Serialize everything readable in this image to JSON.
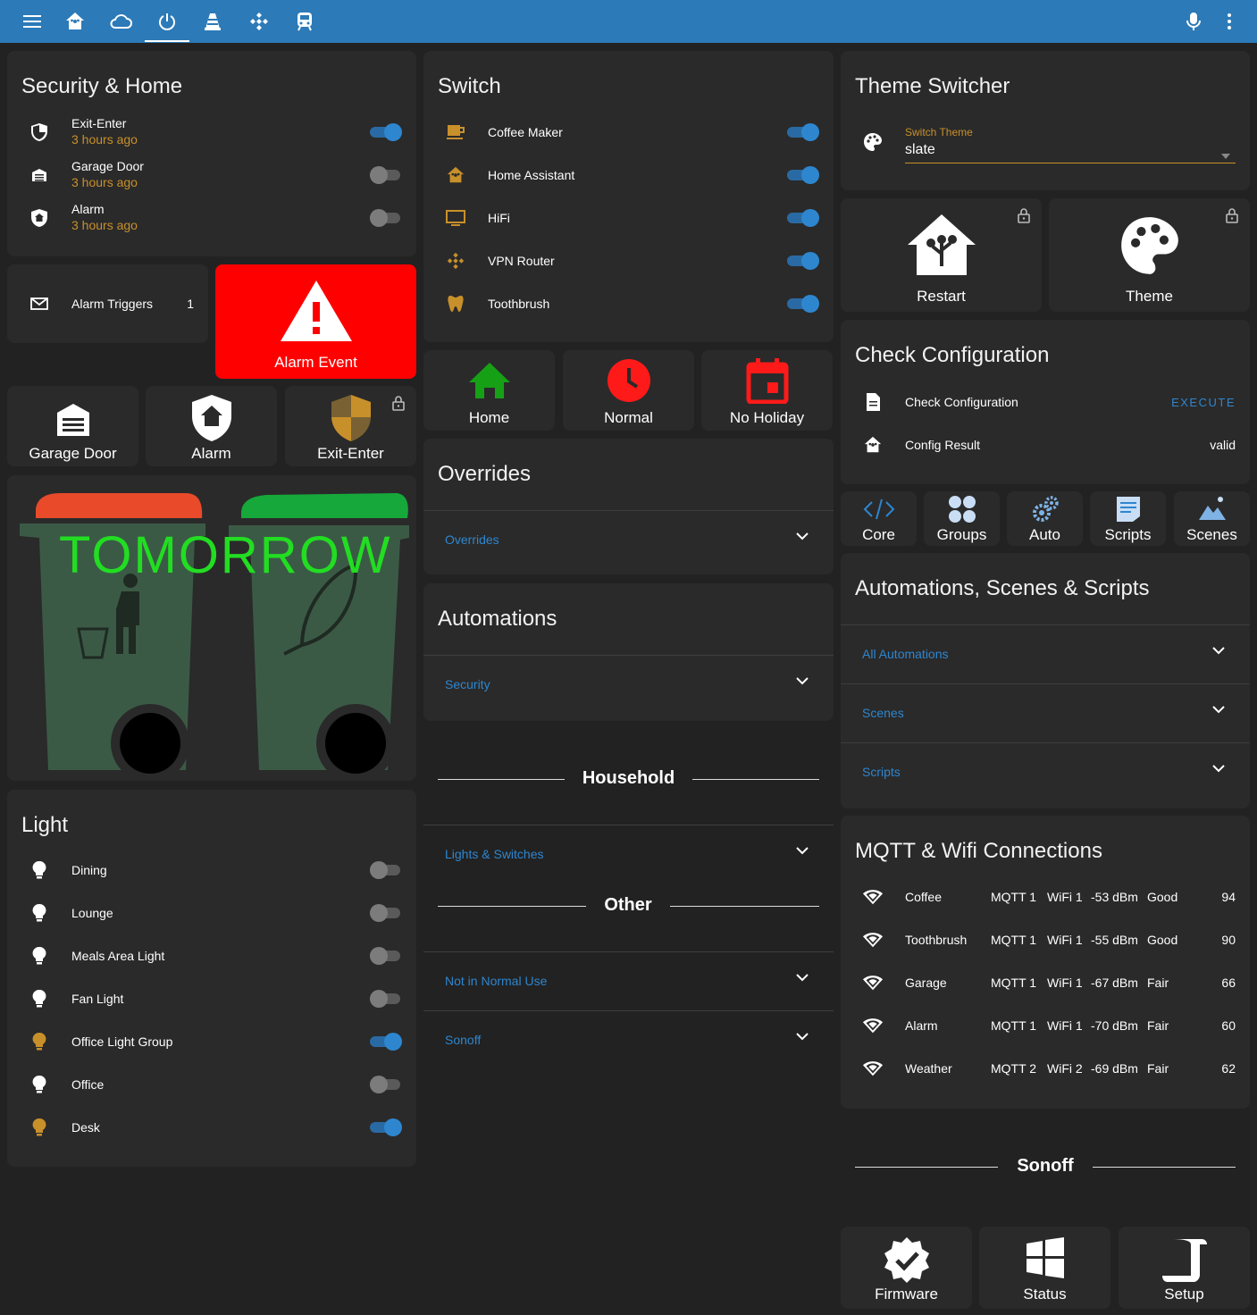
{
  "header": {
    "icons": [
      "menu-icon",
      "home-assistant-icon",
      "cloud-icon",
      "power-icon",
      "vlc-cone-icon",
      "kodi-icon",
      "train-icon"
    ],
    "mic": "microphone-icon",
    "more": "dots-vertical-icon"
  },
  "security": {
    "title": "Security & Home",
    "rows": [
      {
        "label": "Exit-Enter",
        "sub": "3 hours ago",
        "on": true,
        "icon": "shield-half-icon"
      },
      {
        "label": "Garage Door",
        "sub": "3 hours ago",
        "on": false,
        "icon": "garage-icon"
      },
      {
        "label": "Alarm",
        "sub": "3 hours ago",
        "on": false,
        "icon": "shield-home-icon"
      }
    ]
  },
  "alarm_triggers": {
    "label": "Alarm Triggers",
    "value": "1"
  },
  "alarm_event": {
    "label": "Alarm Event",
    "bg": "#ff0000"
  },
  "sec_buttons": [
    {
      "label": "Garage Door"
    },
    {
      "label": "Alarm"
    },
    {
      "label": "Exit-Enter"
    }
  ],
  "bins": {
    "text": "TOMORROW",
    "text_color": "#22dd22",
    "left_lid": "#e84a2a",
    "right_lid": "#16a83a",
    "body_color": "#3b5a46"
  },
  "light": {
    "title": "Light",
    "rows": [
      {
        "label": "Dining",
        "on": false,
        "color": "#ffffff"
      },
      {
        "label": "Lounge",
        "on": false,
        "color": "#ffffff"
      },
      {
        "label": "Meals Area Light",
        "on": false,
        "color": "#ffffff"
      },
      {
        "label": "Fan Light",
        "on": false,
        "color": "#ffffff"
      },
      {
        "label": "Office Light Group",
        "on": true,
        "color": "#c8902a"
      },
      {
        "label": "Office",
        "on": false,
        "color": "#ffffff"
      },
      {
        "label": "Desk",
        "on": true,
        "color": "#c8902a"
      }
    ]
  },
  "switch": {
    "title": "Switch",
    "rows": [
      {
        "label": "Coffee Maker",
        "on": true,
        "icon": "coffee-maker-icon"
      },
      {
        "label": "Home Assistant",
        "on": true,
        "icon": "home-assistant-icon"
      },
      {
        "label": "HiFi",
        "on": true,
        "icon": "monitor-icon"
      },
      {
        "label": "VPN Router",
        "on": true,
        "icon": "kodi-icon"
      },
      {
        "label": "Toothbrush",
        "on": true,
        "icon": "tooth-icon"
      }
    ]
  },
  "modes": [
    {
      "label": "Home",
      "color": "#16a016"
    },
    {
      "label": "Normal",
      "color": "#ff1a1a"
    },
    {
      "label": "No Holiday",
      "color": "#ff1a1a"
    }
  ],
  "overrides": {
    "title": "Overrides",
    "item": "Overrides"
  },
  "automations": {
    "title": "Automations",
    "item": "Security"
  },
  "household": {
    "title": "Household",
    "item": "Lights & Switches"
  },
  "other": {
    "title": "Other",
    "items": [
      "Not in Normal Use",
      "Sonoff"
    ]
  },
  "theme": {
    "title": "Theme Switcher",
    "field_label": "Switch Theme",
    "value": "slate",
    "accent": "#c8902a"
  },
  "theme_buttons": [
    {
      "label": "Restart"
    },
    {
      "label": "Theme"
    }
  ],
  "check": {
    "title": "Check Configuration",
    "rows": [
      {
        "label": "Check Configuration",
        "value": "EXECUTE"
      },
      {
        "label": "Config Result",
        "value": "valid"
      }
    ]
  },
  "nav": [
    {
      "label": "Core"
    },
    {
      "label": "Groups"
    },
    {
      "label": "Auto"
    },
    {
      "label": "Scripts"
    },
    {
      "label": "Scenes"
    }
  ],
  "ass": {
    "title": "Automations, Scenes & Scripts",
    "items": [
      "All Automations",
      "Scenes",
      "Scripts"
    ]
  },
  "mqtt": {
    "title": "MQTT & Wifi Connections",
    "rows": [
      {
        "name": "Coffee",
        "mqtt": "MQTT 1",
        "wifi": "WiFi 1",
        "dbm": "-53 dBm",
        "q": "Good",
        "pct": "94"
      },
      {
        "name": "Toothbrush",
        "mqtt": "MQTT 1",
        "wifi": "WiFi 1",
        "dbm": "-55 dBm",
        "q": "Good",
        "pct": "90"
      },
      {
        "name": "Garage",
        "mqtt": "MQTT 1",
        "wifi": "WiFi 1",
        "dbm": "-67 dBm",
        "q": "Fair",
        "pct": "66"
      },
      {
        "name": "Alarm",
        "mqtt": "MQTT 1",
        "wifi": "WiFi 1",
        "dbm": "-70 dBm",
        "q": "Fair",
        "pct": "60"
      },
      {
        "name": "Weather",
        "mqtt": "MQTT 2",
        "wifi": "WiFi 2",
        "dbm": "-69 dBm",
        "q": "Fair",
        "pct": "62"
      }
    ]
  },
  "sonoff": {
    "title": "Sonoff",
    "buttons": [
      {
        "label": "Firmware"
      },
      {
        "label": "Status"
      },
      {
        "label": "Setup"
      }
    ]
  }
}
